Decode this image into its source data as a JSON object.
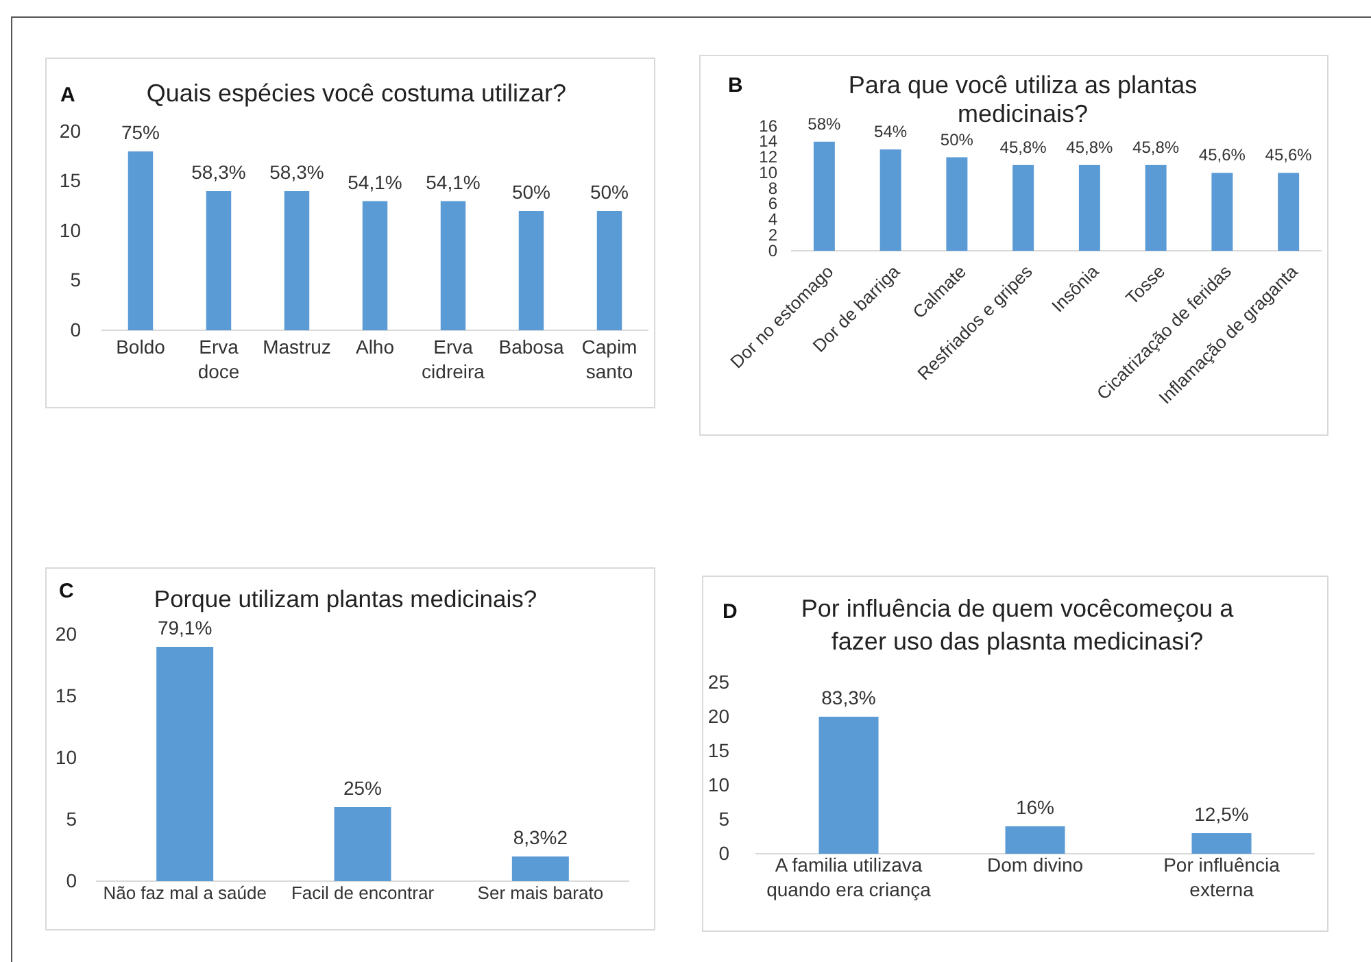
{
  "chart_data": [
    {
      "type": "bar",
      "title": "Quais espécies você costuma utilizar?",
      "annotations": [
        "A",
        {
          "text": "75%",
          "x": "Boldo",
          "y": 18
        },
        {
          "text": "58,3%",
          "x": "Erva doce",
          "y": 14
        },
        {
          "text": "58,3%",
          "x": "Mastruz",
          "y": 14
        },
        {
          "text": "54,1%",
          "x": "Alho",
          "y": 13
        },
        {
          "text": "54,1%",
          "x": "Erva cidreira",
          "y": 13
        },
        {
          "text": "50%",
          "x": "Babosa",
          "y": 12
        },
        {
          "text": "50%",
          "x": "Capim santo",
          "y": 12
        }
      ],
      "categories": [
        "Boldo",
        "Erva doce",
        "Mastruz",
        "Alho",
        "Erva cidreira",
        "Babosa",
        "Capim santo"
      ],
      "values": [
        18,
        14,
        14,
        13,
        13,
        12,
        12
      ],
      "color": "#5b9bd5",
      "ylim": [
        0,
        20
      ],
      "yticks": [
        0,
        5,
        10,
        15,
        20
      ]
    },
    {
      "type": "bar",
      "title": "Para que você utiliza as plantas medicinais?",
      "annotations": [
        "B",
        {
          "text": "58%",
          "x": "Dor no estomago",
          "y": 14
        },
        {
          "text": "54%",
          "x": "Dor de barriga",
          "y": 13
        },
        {
          "text": "50%",
          "x": "Calmate",
          "y": 12
        },
        {
          "text": "45,8%",
          "x": "Resfriados e gripes",
          "y": 11
        },
        {
          "text": "45,8%",
          "x": "Insônia",
          "y": 11
        },
        {
          "text": "45,8%",
          "x": "Tosse",
          "y": 11
        },
        {
          "text": "45,6%",
          "x": "Cicatrização de feridas",
          "y": 10
        },
        {
          "text": "45,6%",
          "x": "Inflamação de graganta",
          "y": 10
        }
      ],
      "categories": [
        "Dor no estomago",
        "Dor de barriga",
        "Calmate",
        "Resfriados e gripes",
        "Insônia",
        "Tosse",
        "Cicatrização de feridas",
        "Inflamação de graganta"
      ],
      "values": [
        14,
        13,
        12,
        11,
        11,
        11,
        10,
        10
      ],
      "color": "#5b9bd5",
      "ylim": [
        0,
        16
      ],
      "yticks": [
        0,
        2,
        4,
        6,
        8,
        10,
        12,
        14,
        16
      ]
    },
    {
      "type": "bar",
      "title": "Porque utilizam plantas medicinais?",
      "annotations": [
        "C",
        {
          "text": "79,1%",
          "x": "Não faz mal a saúde",
          "y": 19
        },
        {
          "text": "25%",
          "x": "Facil de encontrar",
          "y": 6
        },
        {
          "text": "8,3%2",
          "x": "Ser mais barato",
          "y": 2
        }
      ],
      "categories": [
        "Não faz mal a saúde",
        "Facil de encontrar",
        "Ser mais barato"
      ],
      "values": [
        19,
        6,
        2
      ],
      "color": "#5b9bd5",
      "ylim": [
        0,
        20
      ],
      "yticks": [
        0,
        5,
        10,
        15,
        20
      ]
    },
    {
      "type": "bar",
      "title": "Por influência de quem vocêcomeçou a fazer uso das plasnta medicinasi?",
      "annotations": [
        "D",
        {
          "text": "83,3%",
          "x": "A familia utilizava quando era criança",
          "y": 20
        },
        {
          "text": "16%",
          "x": "Dom divino",
          "y": 4
        },
        {
          "text": "12,5%",
          "x": "Por influência externa",
          "y": 3
        }
      ],
      "categories": [
        "A familia utilizava quando era criança",
        "Dom divino",
        "Por influência externa"
      ],
      "values": [
        20,
        4,
        3
      ],
      "color": "#5b9bd5",
      "ylim": [
        0,
        25
      ],
      "yticks": [
        0,
        5,
        10,
        15,
        20,
        25
      ]
    }
  ]
}
